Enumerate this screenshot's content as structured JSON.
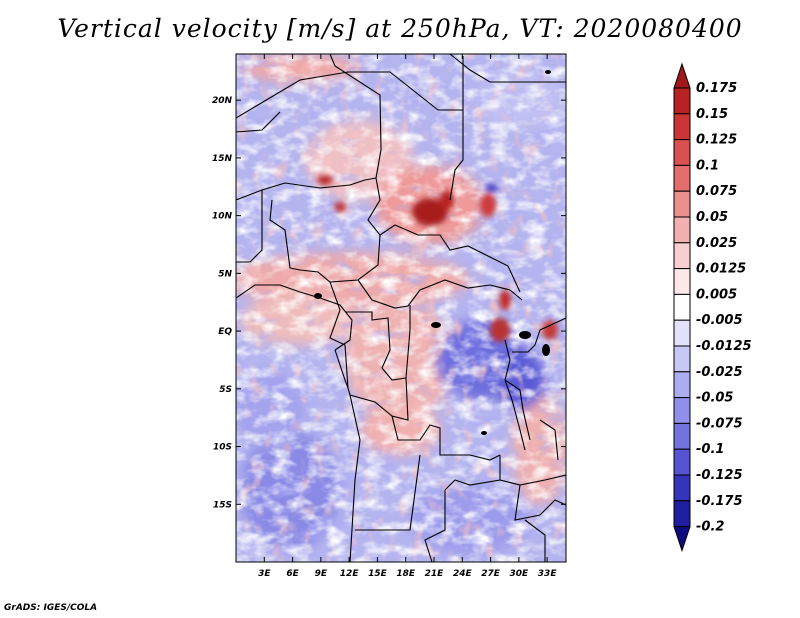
{
  "title": "Vertical velocity [m/s] at 250hPa, VT: 2020080400",
  "credit": "GrADS: IGES/COLA",
  "chart_data": {
    "type": "heatmap",
    "title": "Vertical velocity [m/s] at 250hPa, VT: 2020080400",
    "variable": "Vertical velocity",
    "units": "m/s",
    "level": "250hPa",
    "valid_time": "2020080400",
    "lon_range": [
      0,
      35
    ],
    "lat_range": [
      -20,
      24
    ],
    "x_ticks": [
      {
        "value": 3,
        "label": "3E"
      },
      {
        "value": 6,
        "label": "6E"
      },
      {
        "value": 9,
        "label": "9E"
      },
      {
        "value": 12,
        "label": "12E"
      },
      {
        "value": 15,
        "label": "15E"
      },
      {
        "value": 18,
        "label": "18E"
      },
      {
        "value": 21,
        "label": "21E"
      },
      {
        "value": 24,
        "label": "24E"
      },
      {
        "value": 27,
        "label": "27E"
      },
      {
        "value": 30,
        "label": "30E"
      },
      {
        "value": 33,
        "label": "33E"
      }
    ],
    "y_ticks": [
      {
        "value": 20,
        "label": "20N"
      },
      {
        "value": 15,
        "label": "15N"
      },
      {
        "value": 10,
        "label": "10N"
      },
      {
        "value": 5,
        "label": "5N"
      },
      {
        "value": 0,
        "label": "EQ"
      },
      {
        "value": -5,
        "label": "5S"
      },
      {
        "value": -10,
        "label": "10S"
      },
      {
        "value": -15,
        "label": "15S"
      }
    ],
    "colorbar": {
      "labels": [
        "0.175",
        "0.15",
        "0.125",
        "0.1",
        "0.075",
        "0.05",
        "0.025",
        "0.0125",
        "0.005",
        "-0.005",
        "-0.0125",
        "-0.025",
        "-0.05",
        "-0.075",
        "-0.1",
        "-0.125",
        "-0.175",
        "-0.2"
      ],
      "colors": [
        "#a01818",
        "#b82222",
        "#cc3535",
        "#da5050",
        "#e46e6e",
        "#ec8f8f",
        "#f3b0b0",
        "#f8cfcf",
        "#fce8e8",
        "#ffffff",
        "#e2e2fb",
        "#c8c8f6",
        "#acacf1",
        "#9090ea",
        "#7373e0",
        "#5555d2",
        "#3535bb",
        "#1e1ea0",
        "#0b0b80"
      ]
    },
    "notable_features": [
      {
        "label": "strong ascent",
        "lon": 22,
        "lat": 11
      },
      {
        "label": "strong ascent",
        "lon": 9,
        "lat": 13
      },
      {
        "label": "strong ascent",
        "lon": 28,
        "lat": 3
      },
      {
        "label": "descent",
        "lon": 29,
        "lat": -3
      }
    ]
  }
}
